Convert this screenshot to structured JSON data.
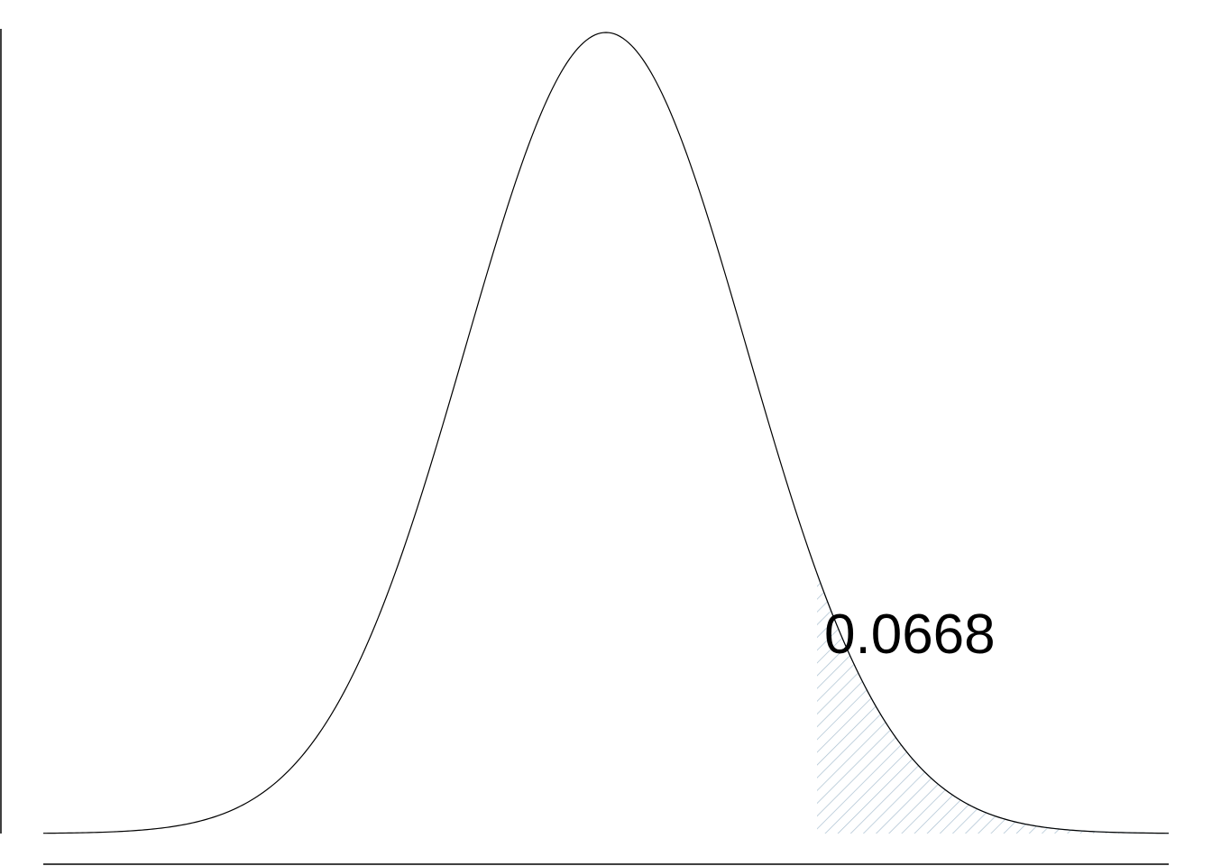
{
  "chart_data": {
    "type": "area",
    "distribution": "normal",
    "mean": 0,
    "sd": 1,
    "xlim": [
      -4,
      4
    ],
    "shaded_region": {
      "from": 1.5,
      "to": 4,
      "pattern": "diagonal-hatch"
    },
    "annotation": "0.0668",
    "curve_color": "#000000",
    "shade_color": "#a9bfd0",
    "axes": {
      "y_axis_line": true,
      "x_axis_line": true,
      "ticks": false,
      "grid": false
    }
  }
}
